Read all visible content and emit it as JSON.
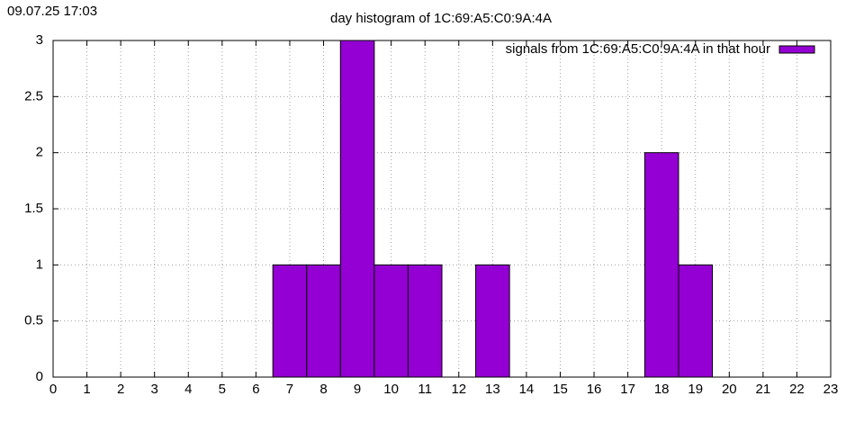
{
  "chart_data": {
    "type": "bar",
    "timestamp": "09.07.25 17:03",
    "title": "day histogram of 1C:69:A5:C0:9A:4A",
    "x": [
      7,
      8,
      9,
      10,
      11,
      13,
      18,
      19
    ],
    "series": [
      {
        "name": "signals from 1C:69:A5:C0:9A:4A in that hour",
        "color": "#9400d3",
        "values": [
          1,
          1,
          3,
          1,
          1,
          1,
          2,
          1
        ]
      }
    ],
    "xlim": [
      0,
      23
    ],
    "xticks": [
      0,
      1,
      2,
      3,
      4,
      5,
      6,
      7,
      8,
      9,
      10,
      11,
      12,
      13,
      14,
      15,
      16,
      17,
      18,
      19,
      20,
      21,
      22,
      23
    ],
    "ylim": [
      0,
      3
    ],
    "yticks": [
      0,
      0.5,
      1,
      1.5,
      2,
      2.5,
      3
    ],
    "grid": true,
    "legend": "top-right"
  }
}
